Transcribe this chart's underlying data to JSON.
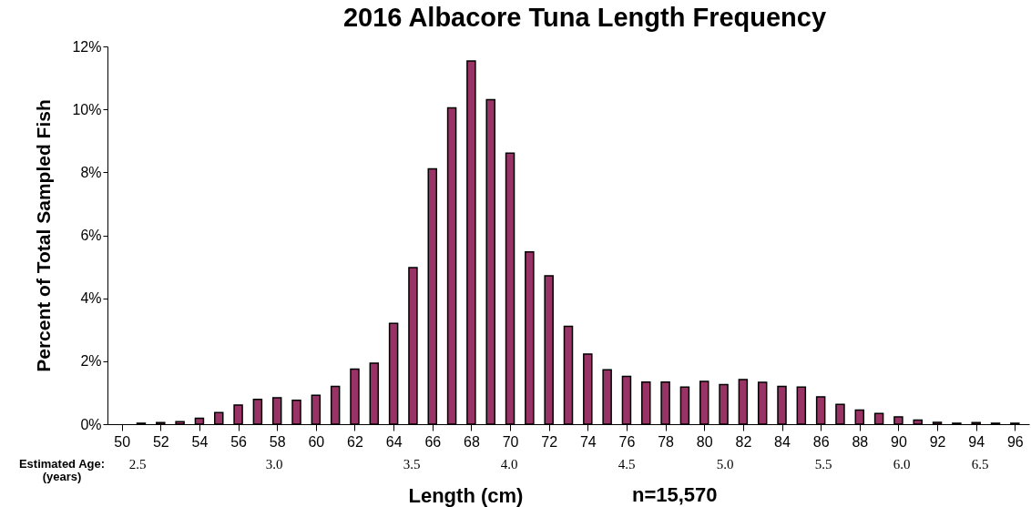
{
  "chart_data": {
    "type": "bar",
    "title": "2016 Albacore Tuna Length Frequency",
    "xlabel": "Length (cm)",
    "ylabel": "Percent of Total Sampled Fish",
    "x": [
      51,
      52,
      53,
      54,
      55,
      56,
      57,
      58,
      59,
      60,
      61,
      62,
      63,
      64,
      65,
      66,
      67,
      68,
      69,
      70,
      71,
      72,
      73,
      74,
      75,
      76,
      77,
      78,
      79,
      80,
      81,
      82,
      83,
      84,
      85,
      86,
      87,
      88,
      89,
      90,
      91,
      92,
      93,
      94,
      95,
      96
    ],
    "values": [
      0.03,
      0.05,
      0.08,
      0.19,
      0.37,
      0.61,
      0.79,
      0.84,
      0.76,
      0.92,
      1.2,
      1.75,
      1.94,
      3.2,
      4.97,
      8.11,
      10.05,
      11.54,
      10.31,
      8.61,
      5.47,
      4.71,
      3.11,
      2.23,
      1.73,
      1.52,
      1.34,
      1.34,
      1.18,
      1.36,
      1.26,
      1.42,
      1.33,
      1.2,
      1.18,
      0.87,
      0.63,
      0.45,
      0.34,
      0.23,
      0.13,
      0.06,
      0.03,
      0.05,
      0.03,
      0.03
    ],
    "color": "#993366",
    "xlim": [
      49.5,
      96.5
    ],
    "xticks": [
      50,
      52,
      54,
      56,
      58,
      60,
      62,
      64,
      66,
      68,
      70,
      72,
      74,
      76,
      78,
      80,
      82,
      84,
      86,
      88,
      90,
      92,
      94,
      96
    ],
    "ylim": [
      0,
      12
    ],
    "yticks": [
      {
        "value": 0,
        "label": "0%"
      },
      {
        "value": 2,
        "label": "2%"
      },
      {
        "value": 4,
        "label": "4%"
      },
      {
        "value": 6,
        "label": "6%"
      },
      {
        "value": 8,
        "label": "8%"
      },
      {
        "value": 10,
        "label": "10%"
      },
      {
        "value": 12,
        "label": "12%"
      }
    ],
    "grid": false,
    "annotations": [
      "n=15,570",
      "Estimated Age:\n(years)",
      "2.5",
      "3.0",
      "3.5",
      "4.0",
      "4.5",
      "5.0",
      "5.5",
      "6.0",
      "6.5"
    ]
  }
}
